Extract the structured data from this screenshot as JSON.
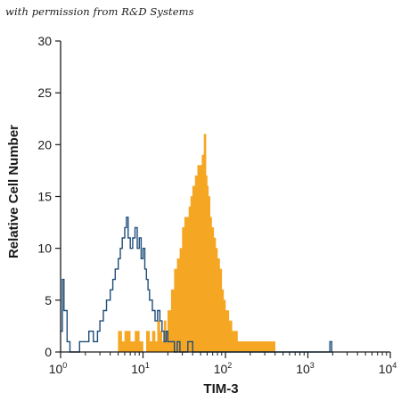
{
  "watermark": "with permission from R&D Systems",
  "chart_data": {
    "type": "histogram",
    "xlabel": "TIM-3",
    "ylabel": "Relative Cell Number",
    "x_scale": "log",
    "xlim": [
      1,
      10000
    ],
    "ylim": [
      0,
      30
    ],
    "x_ticks": [
      {
        "base": "10",
        "exp": "0"
      },
      {
        "base": "10",
        "exp": "1"
      },
      {
        "base": "10",
        "exp": "2"
      },
      {
        "base": "10",
        "exp": "3"
      },
      {
        "base": "10",
        "exp": "4"
      }
    ],
    "y_ticks": [
      0,
      5,
      10,
      15,
      20,
      25,
      30
    ],
    "grid": false,
    "legend": "none",
    "colors": {
      "filled": "#f5a623",
      "outline": "#1f4e79",
      "axis": "#1a1a1a"
    },
    "series": [
      {
        "style": "filled",
        "x": [
          4.5,
          5,
          5.5,
          6,
          7,
          8,
          9,
          10,
          11,
          12,
          13,
          14,
          15,
          16,
          17,
          18,
          19,
          20,
          22,
          24,
          26,
          28,
          30,
          32,
          34,
          36,
          38,
          40,
          43,
          46,
          49,
          52,
          55,
          58,
          60,
          62,
          65,
          68,
          72,
          76,
          80,
          85,
          90,
          95,
          100,
          110,
          120,
          130,
          140,
          160,
          180,
          200,
          250,
          300,
          350,
          400
        ],
        "y": [
          0,
          2,
          1,
          2,
          1,
          2,
          1,
          0,
          2,
          1,
          2,
          1,
          3,
          2,
          1,
          3,
          2,
          4,
          6,
          8,
          9,
          10,
          12,
          13,
          13,
          14,
          15,
          16,
          17,
          18,
          18,
          19,
          21,
          17,
          16,
          15,
          13,
          12,
          11,
          10,
          9,
          8,
          6,
          5,
          4,
          3,
          2,
          2,
          1,
          1,
          1,
          1,
          1,
          1,
          1,
          0
        ]
      },
      {
        "style": "outline",
        "x": [
          1,
          1.05,
          1.1,
          1.2,
          1.3,
          1.5,
          1.7,
          2,
          2.2,
          2.5,
          2.8,
          3,
          3.3,
          3.6,
          4,
          4.3,
          4.6,
          5,
          5.3,
          5.6,
          6,
          6.3,
          6.6,
          7,
          7.5,
          8,
          8.5,
          9,
          9.5,
          10,
          10.5,
          11,
          11.5,
          12,
          13,
          14,
          15,
          16,
          17,
          18,
          19,
          20,
          22,
          24,
          26,
          28,
          30,
          35,
          40,
          50,
          80,
          200,
          500,
          1000,
          1500,
          1800,
          1850,
          1900,
          1950,
          2000
        ],
        "y": [
          2,
          7,
          4,
          1,
          0,
          0,
          1,
          1,
          2,
          1,
          2,
          3,
          4,
          5,
          6,
          7,
          8,
          9,
          10,
          11,
          12,
          13,
          11,
          10,
          11,
          12,
          10,
          11,
          9,
          10,
          8,
          7,
          6,
          5,
          4,
          3,
          4,
          3,
          2,
          1,
          2,
          1,
          1,
          0,
          1,
          0,
          0,
          1,
          0,
          0,
          0,
          0,
          0,
          0,
          0,
          0,
          1,
          1,
          0,
          0
        ]
      }
    ]
  }
}
